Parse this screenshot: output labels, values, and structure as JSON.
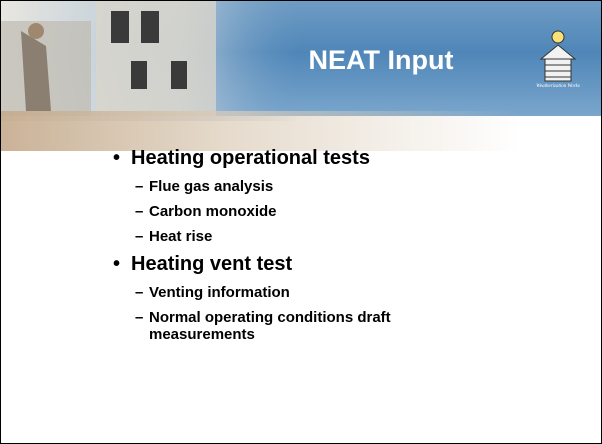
{
  "header": {
    "title": "NEAT Input",
    "logo_text": "Weatherization Works"
  },
  "bullets": [
    {
      "text": "Heating operational tests",
      "items": [
        "Flue gas analysis",
        "Carbon monoxide",
        "Heat rise"
      ]
    },
    {
      "text": "Heating vent test",
      "items": [
        "Venting information",
        "Normal operating conditions draft measurements"
      ]
    }
  ]
}
